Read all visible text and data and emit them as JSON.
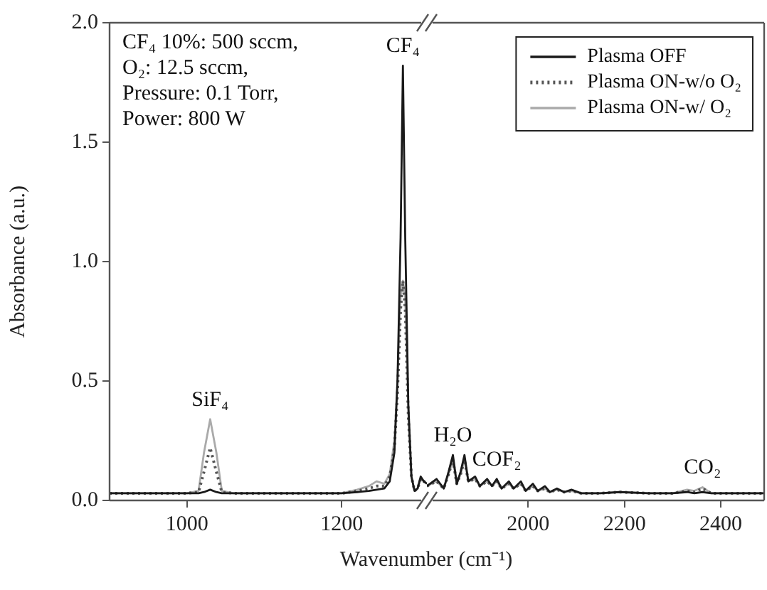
{
  "chart_data": [
    {
      "type": "line",
      "ylabel": "Absorbance (a.u.)",
      "xlabel": "Wavenumber (cm⁻¹)",
      "xlim": [
        900,
        1310
      ],
      "xticks": [
        1000,
        1200
      ],
      "ylim": [
        0,
        2
      ],
      "yticks": [
        {
          "value": 0,
          "label": "0.0"
        },
        {
          "value": 0.5,
          "label": "0.5"
        },
        {
          "value": 1,
          "label": "1.0"
        },
        {
          "value": 1.5,
          "label": "1.5"
        },
        {
          "value": 2,
          "label": "2.0"
        }
      ],
      "grid": false,
      "marker": "none",
      "x": [
        900,
        950,
        1000,
        1015,
        1022,
        1030,
        1038,
        1045,
        1060,
        1100,
        1150,
        1200,
        1220,
        1235,
        1245,
        1255,
        1262,
        1268,
        1272,
        1276,
        1279,
        1282,
        1286,
        1290,
        1294,
        1298,
        1302,
        1306,
        1310
      ],
      "series": [
        {
          "color": "#1a1a1a",
          "line_style": "solid",
          "values": [
            0.03,
            0.03,
            0.03,
            0.03,
            0.035,
            0.045,
            0.035,
            0.03,
            0.03,
            0.03,
            0.03,
            0.03,
            0.035,
            0.04,
            0.045,
            0.05,
            0.08,
            0.2,
            0.5,
            1.1,
            1.82,
            1.1,
            0.4,
            0.1,
            0.04,
            0.05,
            0.1,
            0.08,
            0.07
          ]
        },
        {
          "color": "#555555",
          "line_style": "dotted",
          "values": [
            0.03,
            0.03,
            0.03,
            0.035,
            0.12,
            0.22,
            0.12,
            0.035,
            0.03,
            0.03,
            0.03,
            0.03,
            0.04,
            0.05,
            0.06,
            0.06,
            0.1,
            0.22,
            0.45,
            0.8,
            0.92,
            0.8,
            0.35,
            0.1,
            0.04,
            0.05,
            0.09,
            0.08,
            0.07
          ]
        },
        {
          "color": "#aaaaaa",
          "line_style": "solid",
          "values": [
            0.03,
            0.03,
            0.03,
            0.04,
            0.2,
            0.34,
            0.2,
            0.04,
            0.03,
            0.03,
            0.03,
            0.03,
            0.045,
            0.06,
            0.08,
            0.07,
            0.11,
            0.25,
            0.5,
            0.85,
            0.92,
            0.85,
            0.38,
            0.1,
            0.04,
            0.05,
            0.09,
            0.08,
            0.07
          ]
        }
      ],
      "annotations": [
        "CF₄ 10%: 500 sccm,",
        "O₂: 12.5 sccm,",
        "Pressure: 0.1 Torr,",
        "Power: 800 W",
        {
          "text": "SiF₄",
          "x": 1030,
          "y": 0.34
        },
        {
          "text": "CF₄",
          "x": 1279,
          "y": 1.82
        }
      ]
    },
    {
      "type": "line",
      "tick_labels": "x",
      "xlim": [
        1790,
        2490
      ],
      "xticks": [
        2000,
        2200,
        2400
      ],
      "ylim": [
        0,
        2
      ],
      "grid": false,
      "marker": "none",
      "legend": "top right",
      "x": [
        1790,
        1810,
        1825,
        1835,
        1844,
        1852,
        1860,
        1868,
        1876,
        1890,
        1900,
        1915,
        1925,
        1935,
        1945,
        1960,
        1970,
        1985,
        1995,
        2010,
        2020,
        2035,
        2045,
        2060,
        2075,
        2090,
        2110,
        2150,
        2190,
        2250,
        2300,
        2330,
        2345,
        2362,
        2380,
        2490
      ],
      "series": [
        {
          "name": "Plasma OFF",
          "color": "#1a1a1a",
          "line_style": "solid",
          "values": [
            0.06,
            0.09,
            0.05,
            0.12,
            0.19,
            0.07,
            0.12,
            0.19,
            0.08,
            0.1,
            0.06,
            0.09,
            0.06,
            0.09,
            0.05,
            0.08,
            0.05,
            0.08,
            0.04,
            0.07,
            0.04,
            0.06,
            0.035,
            0.05,
            0.035,
            0.045,
            0.03,
            0.03,
            0.035,
            0.03,
            0.03,
            0.035,
            0.03,
            0.035,
            0.03,
            0.03
          ]
        },
        {
          "name": "Plasma ON-w/o O₂",
          "color": "#555555",
          "line_style": "dotted",
          "values": [
            0.06,
            0.08,
            0.05,
            0.11,
            0.17,
            0.07,
            0.11,
            0.17,
            0.08,
            0.09,
            0.06,
            0.08,
            0.06,
            0.08,
            0.05,
            0.07,
            0.05,
            0.07,
            0.04,
            0.06,
            0.04,
            0.05,
            0.035,
            0.045,
            0.035,
            0.04,
            0.03,
            0.03,
            0.035,
            0.03,
            0.03,
            0.04,
            0.035,
            0.05,
            0.03,
            0.03
          ]
        },
        {
          "name": "Plasma ON-w/ O₂",
          "color": "#aaaaaa",
          "line_style": "solid",
          "values": [
            0.06,
            0.08,
            0.05,
            0.11,
            0.17,
            0.07,
            0.11,
            0.17,
            0.08,
            0.09,
            0.06,
            0.08,
            0.06,
            0.08,
            0.05,
            0.07,
            0.05,
            0.07,
            0.04,
            0.06,
            0.04,
            0.05,
            0.035,
            0.045,
            0.035,
            0.04,
            0.03,
            0.03,
            0.035,
            0.03,
            0.03,
            0.045,
            0.04,
            0.055,
            0.03,
            0.03
          ]
        }
      ],
      "annotations": [
        {
          "text": "H₂O",
          "x": 1844,
          "y": 0.19
        },
        {
          "text": "COF₂",
          "x": 1935,
          "y": 0.09
        },
        {
          "text": "CO₂",
          "x": 2362,
          "y": 0.055
        }
      ]
    }
  ]
}
